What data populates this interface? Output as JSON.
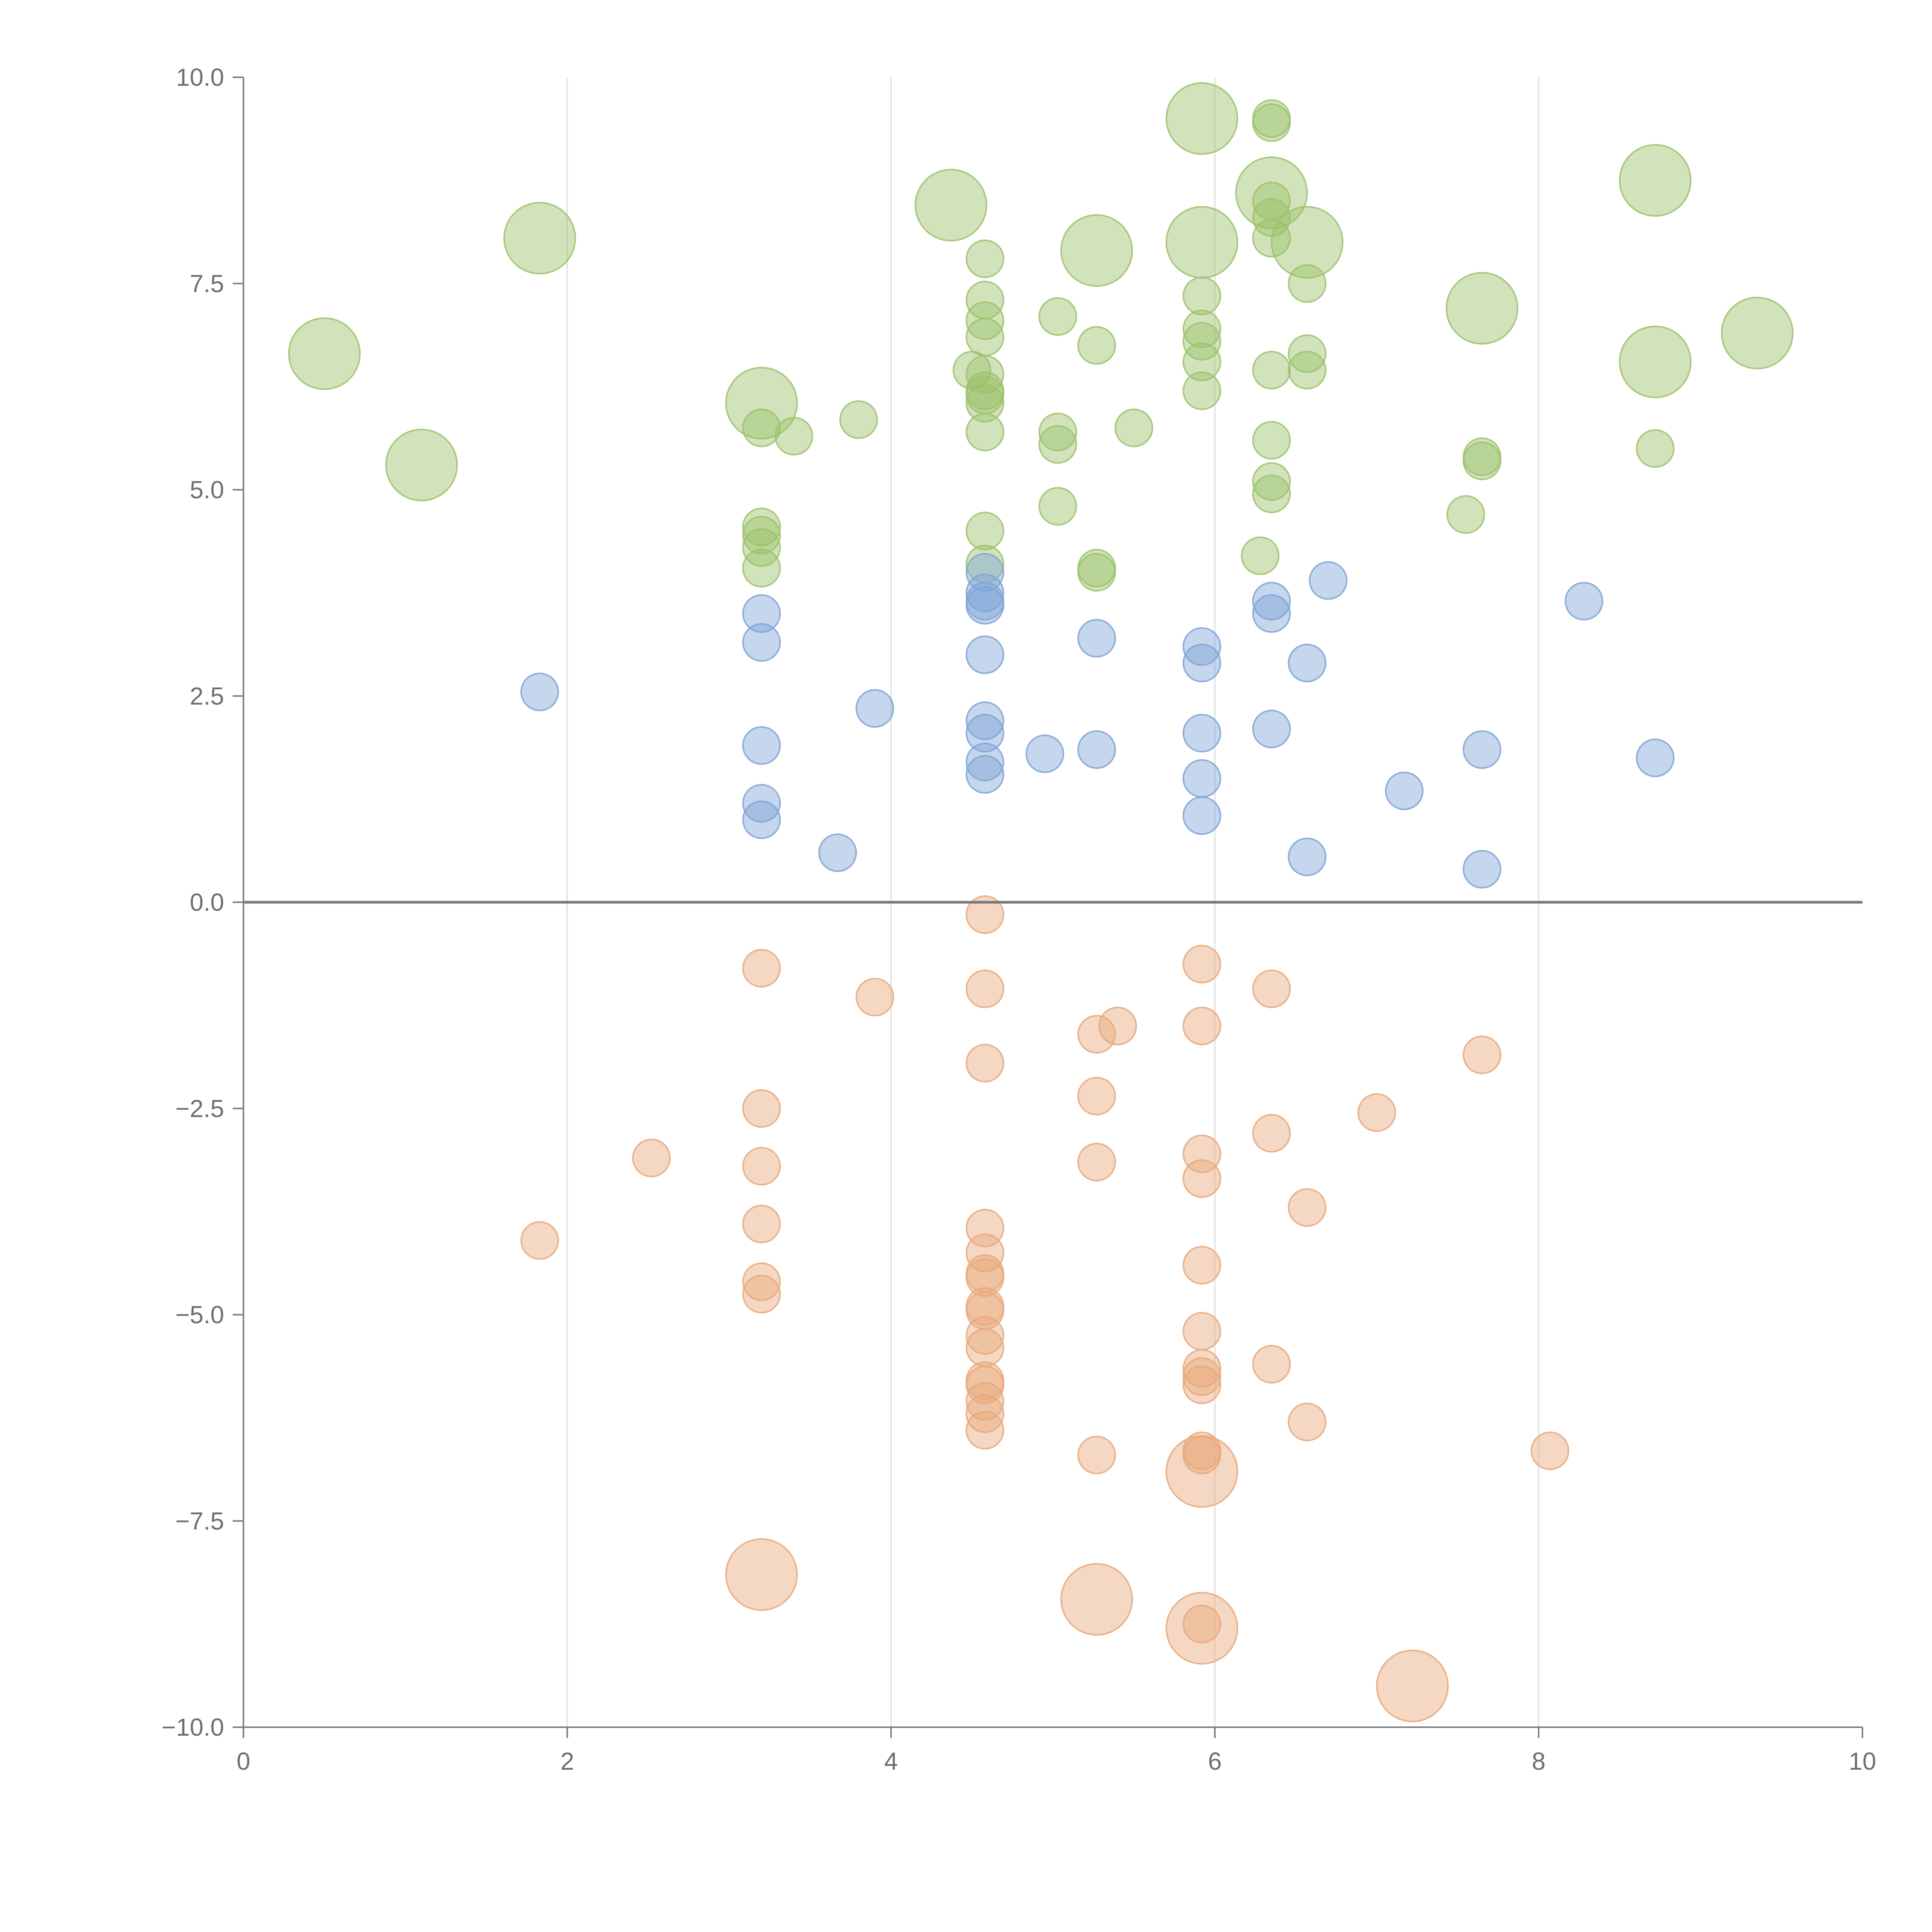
{
  "chart_data": {
    "type": "scatter",
    "title": "",
    "xlabel": "",
    "ylabel": "",
    "xlim": [
      0,
      10
    ],
    "ylim": [
      -10,
      10
    ],
    "x_ticks": [
      0,
      2,
      4,
      6,
      8,
      10
    ],
    "x_tick_labels": [
      "0",
      "2",
      "4",
      "6",
      "8",
      "10"
    ],
    "y_ticks": [
      -10,
      -7.5,
      -5,
      -2.5,
      0,
      2.5,
      5,
      7.5,
      10
    ],
    "y_tick_labels": [
      "−10.0",
      "−7.5",
      "−5.0",
      "−2.5",
      "0.0",
      "2.5",
      "5.0",
      "7.5",
      "10.0"
    ],
    "vertical_gridlines_at_x": [
      2,
      4,
      6,
      8
    ],
    "horizontal_reference_line_y": 0,
    "series": [
      {
        "name": "green",
        "color": "#9cc26b",
        "points": [
          [
            0.5,
            6.65,
            2
          ],
          [
            1.1,
            5.3,
            2
          ],
          [
            1.83,
            8.05,
            2
          ],
          [
            3.2,
            6.05,
            2
          ],
          [
            3.2,
            5.75,
            1
          ],
          [
            3.4,
            5.65,
            1
          ],
          [
            3.8,
            5.85,
            1
          ],
          [
            3.2,
            4.55,
            1
          ],
          [
            3.2,
            4.45,
            1
          ],
          [
            3.2,
            4.3,
            1
          ],
          [
            3.2,
            4.05,
            1
          ],
          [
            4.37,
            8.45,
            2
          ],
          [
            4.58,
            7.8,
            1
          ],
          [
            4.58,
            7.3,
            1
          ],
          [
            4.58,
            7.05,
            1
          ],
          [
            4.58,
            6.85,
            1
          ],
          [
            4.5,
            6.45,
            1
          ],
          [
            4.58,
            6.4,
            1
          ],
          [
            4.58,
            6.2,
            1
          ],
          [
            4.58,
            6.15,
            1
          ],
          [
            4.58,
            6.05,
            1
          ],
          [
            4.58,
            5.7,
            1
          ],
          [
            4.58,
            4.5,
            1
          ],
          [
            4.58,
            4.1,
            1
          ],
          [
            5.03,
            7.1,
            1
          ],
          [
            5.03,
            5.7,
            1
          ],
          [
            5.03,
            5.55,
            1
          ],
          [
            5.03,
            4.8,
            1
          ],
          [
            5.27,
            7.9,
            2
          ],
          [
            5.27,
            6.75,
            1
          ],
          [
            5.5,
            5.75,
            1
          ],
          [
            5.27,
            4.05,
            1
          ],
          [
            5.27,
            4.0,
            1
          ],
          [
            5.92,
            9.5,
            2
          ],
          [
            5.92,
            8.0,
            2
          ],
          [
            5.92,
            7.35,
            1
          ],
          [
            5.92,
            6.95,
            1
          ],
          [
            5.92,
            6.8,
            1
          ],
          [
            5.92,
            6.55,
            1
          ],
          [
            5.92,
            6.2,
            1
          ],
          [
            6.35,
            9.5,
            1
          ],
          [
            6.35,
            9.45,
            1
          ],
          [
            6.35,
            8.6,
            2
          ],
          [
            6.35,
            8.5,
            1
          ],
          [
            6.35,
            8.3,
            1
          ],
          [
            6.35,
            8.05,
            1
          ],
          [
            6.57,
            8.0,
            2
          ],
          [
            6.57,
            7.5,
            1
          ],
          [
            6.57,
            6.65,
            1
          ],
          [
            6.57,
            6.45,
            1
          ],
          [
            6.35,
            6.45,
            1
          ],
          [
            6.35,
            5.6,
            1
          ],
          [
            6.35,
            5.1,
            1
          ],
          [
            6.35,
            4.95,
            1
          ],
          [
            6.28,
            4.2,
            1
          ],
          [
            7.65,
            7.2,
            2
          ],
          [
            7.65,
            5.4,
            1
          ],
          [
            7.65,
            5.35,
            1
          ],
          [
            7.55,
            4.7,
            1
          ],
          [
            8.72,
            8.75,
            2
          ],
          [
            8.72,
            6.55,
            2
          ],
          [
            8.72,
            5.5,
            1
          ],
          [
            9.35,
            6.9,
            2
          ]
        ]
      },
      {
        "name": "blue",
        "color": "#7fa3d6",
        "points": [
          [
            1.83,
            2.55,
            1
          ],
          [
            3.2,
            3.5,
            1
          ],
          [
            3.2,
            3.15,
            1
          ],
          [
            3.2,
            1.9,
            1
          ],
          [
            3.2,
            1.2,
            1
          ],
          [
            3.2,
            1.0,
            1
          ],
          [
            3.67,
            0.6,
            1
          ],
          [
            3.9,
            2.35,
            1
          ],
          [
            4.58,
            4.0,
            1
          ],
          [
            4.58,
            3.75,
            1
          ],
          [
            4.58,
            3.65,
            1
          ],
          [
            4.58,
            3.6,
            1
          ],
          [
            4.58,
            3.0,
            1
          ],
          [
            4.58,
            2.2,
            1
          ],
          [
            4.58,
            2.05,
            1
          ],
          [
            4.58,
            1.7,
            1
          ],
          [
            4.58,
            1.55,
            1
          ],
          [
            4.95,
            1.8,
            1
          ],
          [
            5.27,
            3.2,
            1
          ],
          [
            5.27,
            1.85,
            1
          ],
          [
            5.92,
            3.1,
            1
          ],
          [
            5.92,
            2.9,
            1
          ],
          [
            5.92,
            2.05,
            1
          ],
          [
            5.92,
            1.5,
            1
          ],
          [
            5.92,
            1.05,
            1
          ],
          [
            6.35,
            3.65,
            1
          ],
          [
            6.35,
            3.5,
            1
          ],
          [
            6.35,
            2.1,
            1
          ],
          [
            6.57,
            2.9,
            1
          ],
          [
            6.57,
            0.55,
            1
          ],
          [
            6.7,
            3.9,
            1
          ],
          [
            7.17,
            1.35,
            1
          ],
          [
            7.65,
            1.85,
            1
          ],
          [
            7.65,
            0.4,
            1
          ],
          [
            8.28,
            3.65,
            1
          ],
          [
            8.72,
            1.75,
            1
          ]
        ]
      },
      {
        "name": "orange",
        "color": "#e8a87a",
        "points": [
          [
            1.83,
            -4.1,
            1
          ],
          [
            2.52,
            -3.1,
            1
          ],
          [
            3.2,
            -0.8,
            1
          ],
          [
            3.2,
            -2.5,
            1
          ],
          [
            3.2,
            -3.2,
            1
          ],
          [
            3.2,
            -3.9,
            1
          ],
          [
            3.2,
            -4.6,
            1
          ],
          [
            3.2,
            -4.75,
            1
          ],
          [
            3.2,
            -8.15,
            2
          ],
          [
            3.9,
            -1.15,
            1
          ],
          [
            4.58,
            -0.15,
            1
          ],
          [
            4.58,
            -1.05,
            1
          ],
          [
            4.58,
            -1.95,
            1
          ],
          [
            4.58,
            -3.95,
            1
          ],
          [
            4.58,
            -4.25,
            1
          ],
          [
            4.58,
            -4.5,
            1
          ],
          [
            4.58,
            -4.55,
            1
          ],
          [
            4.58,
            -4.9,
            1
          ],
          [
            4.58,
            -4.95,
            1
          ],
          [
            4.58,
            -5.25,
            1
          ],
          [
            4.58,
            -5.4,
            1
          ],
          [
            4.58,
            -5.8,
            1
          ],
          [
            4.58,
            -5.85,
            1
          ],
          [
            4.58,
            -6.05,
            1
          ],
          [
            4.58,
            -6.2,
            1
          ],
          [
            4.58,
            -6.4,
            1
          ],
          [
            5.27,
            -1.6,
            1
          ],
          [
            5.4,
            -1.5,
            1
          ],
          [
            5.27,
            -2.35,
            1
          ],
          [
            5.27,
            -3.15,
            1
          ],
          [
            5.27,
            -6.7,
            1
          ],
          [
            5.27,
            -8.45,
            2
          ],
          [
            5.92,
            -0.75,
            1
          ],
          [
            5.92,
            -1.5,
            1
          ],
          [
            5.92,
            -3.05,
            1
          ],
          [
            5.92,
            -3.35,
            1
          ],
          [
            5.92,
            -4.4,
            1
          ],
          [
            5.92,
            -5.2,
            1
          ],
          [
            5.92,
            -5.65,
            1
          ],
          [
            5.92,
            -5.75,
            1
          ],
          [
            5.92,
            -5.85,
            1
          ],
          [
            5.92,
            -6.65,
            1
          ],
          [
            5.92,
            -6.7,
            1
          ],
          [
            5.92,
            -6.9,
            2
          ],
          [
            5.92,
            -8.75,
            1
          ],
          [
            5.92,
            -8.8,
            2
          ],
          [
            6.35,
            -1.05,
            1
          ],
          [
            6.35,
            -2.8,
            1
          ],
          [
            6.35,
            -5.6,
            1
          ],
          [
            6.57,
            -3.7,
            1
          ],
          [
            6.57,
            -6.3,
            1
          ],
          [
            7.0,
            -2.55,
            1
          ],
          [
            7.65,
            -1.85,
            1
          ],
          [
            8.07,
            -6.65,
            1
          ],
          [
            7.22,
            -9.5,
            2
          ]
        ]
      }
    ],
    "size_legend": "1 = small bubble, 2 = large bubble"
  }
}
